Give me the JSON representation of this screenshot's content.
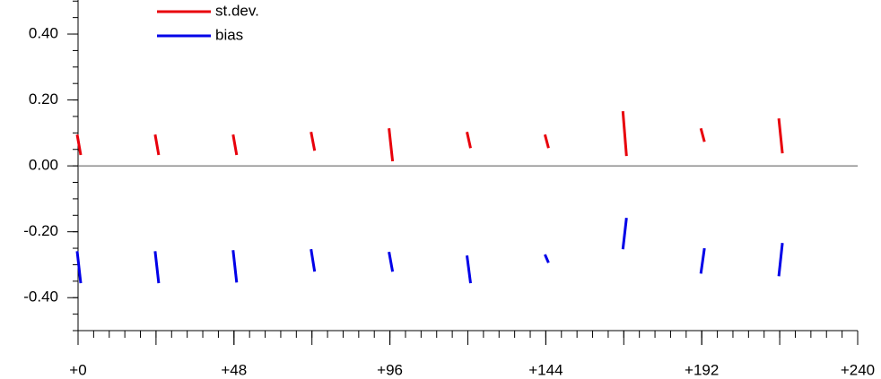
{
  "chart_data": {
    "type": "segment",
    "x": [
      0,
      24,
      48,
      72,
      96,
      120,
      144,
      168,
      192,
      216
    ],
    "series": [
      {
        "name": "st.dev.",
        "color": "#e8000b",
        "values": [
          0.095,
          0.095,
          0.095,
          0.103,
          0.114,
          0.103,
          0.095,
          0.166,
          0.114,
          0.144
        ],
        "values_end": [
          0.033,
          0.033,
          0.033,
          0.046,
          0.014,
          0.054,
          0.054,
          0.03,
          0.073,
          0.038
        ]
      },
      {
        "name": "bias",
        "color": "#0000e8",
        "values": [
          -0.259,
          -0.259,
          -0.256,
          -0.253,
          -0.261,
          -0.272,
          -0.269,
          -0.253,
          -0.327,
          -0.335
        ],
        "values_end": [
          -0.356,
          -0.356,
          -0.354,
          -0.321,
          -0.321,
          -0.356,
          -0.294,
          -0.158,
          -0.25,
          -0.234
        ]
      }
    ],
    "xlim": [
      0,
      240
    ],
    "xticks": [
      {
        "value": 0,
        "label": "+0"
      },
      {
        "value": 48,
        "label": "+48"
      },
      {
        "value": 96,
        "label": "+96"
      },
      {
        "value": 144,
        "label": "+144"
      },
      {
        "value": 192,
        "label": "+192"
      },
      {
        "value": 240,
        "label": "+240"
      }
    ],
    "ylim": [
      -0.5,
      0.5
    ],
    "yticks": [
      {
        "value": -0.4,
        "label": "-0.40"
      },
      {
        "value": -0.2,
        "label": "-0.20"
      },
      {
        "value": 0,
        "label": "0.00"
      },
      {
        "value": 0.2,
        "label": "0.20"
      },
      {
        "value": 0.4,
        "label": "0.40"
      }
    ]
  }
}
